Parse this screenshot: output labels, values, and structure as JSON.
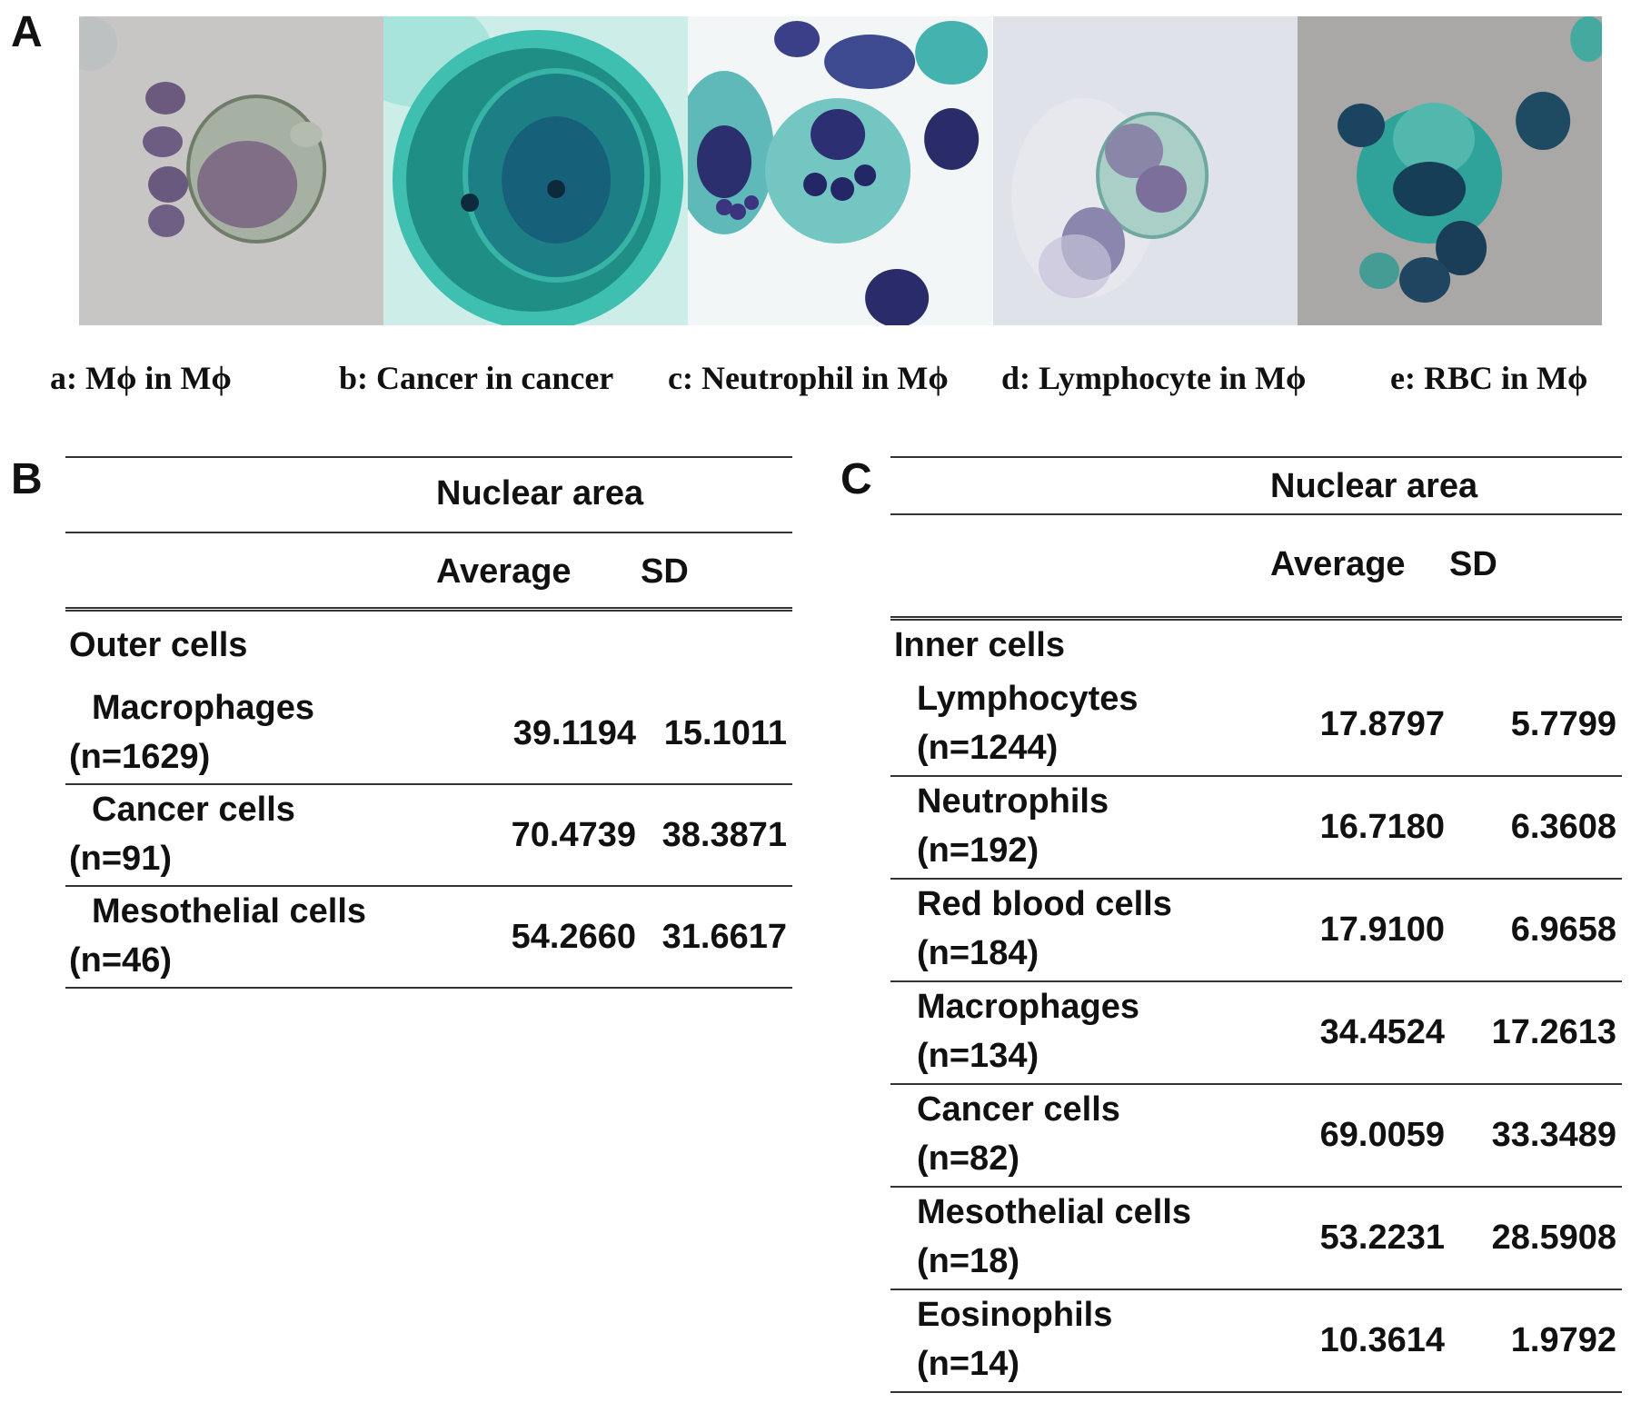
{
  "panel_a": {
    "letter": "A",
    "images": [
      {
        "caption": "a: Mϕ in Mϕ"
      },
      {
        "caption": "b: Cancer in cancer"
      },
      {
        "caption": "c: Neutrophil in Mϕ"
      },
      {
        "caption": "d: Lymphocyte in Mϕ"
      },
      {
        "caption": "e: RBC in Mϕ"
      }
    ]
  },
  "panel_b": {
    "letter": "B",
    "header": "Nuclear area",
    "col_average": "Average",
    "col_sd": "SD",
    "group": "Outer cells",
    "rows": [
      {
        "name": "Macrophages",
        "n": "(n=1629)",
        "average": "39.1194",
        "sd": "15.1011"
      },
      {
        "name": "Cancer cells",
        "n": "(n=91)",
        "average": "70.4739",
        "sd": "38.3871"
      },
      {
        "name": "Mesothelial cells",
        "n": "(n=46)",
        "average": "54.2660",
        "sd": "31.6617"
      }
    ]
  },
  "panel_c": {
    "letter": "C",
    "header": "Nuclear area",
    "col_average": "Average",
    "col_sd": "SD",
    "group": "Inner cells",
    "rows": [
      {
        "name": "Lymphocytes",
        "n": "(n=1244)",
        "average": "17.8797",
        "sd": "5.7799"
      },
      {
        "name": "Neutrophils",
        "n": "(n=192)",
        "average": "16.7180",
        "sd": "6.3608"
      },
      {
        "name": "Red blood cells",
        "n": "(n=184)",
        "average": "17.9100",
        "sd": "6.9658"
      },
      {
        "name": "Macrophages",
        "n": "(n=134)",
        "average": "34.4524",
        "sd": "17.2613"
      },
      {
        "name": "Cancer cells",
        "n": "(n=82)",
        "average": "69.0059",
        "sd": "33.3489"
      },
      {
        "name": "Mesothelial cells",
        "n": "(n=18)",
        "average": "53.2231",
        "sd": "28.5908"
      },
      {
        "name": "Eosinophils",
        "n": "(n=14)",
        "average": "10.3614",
        "sd": "1.9792"
      }
    ]
  }
}
